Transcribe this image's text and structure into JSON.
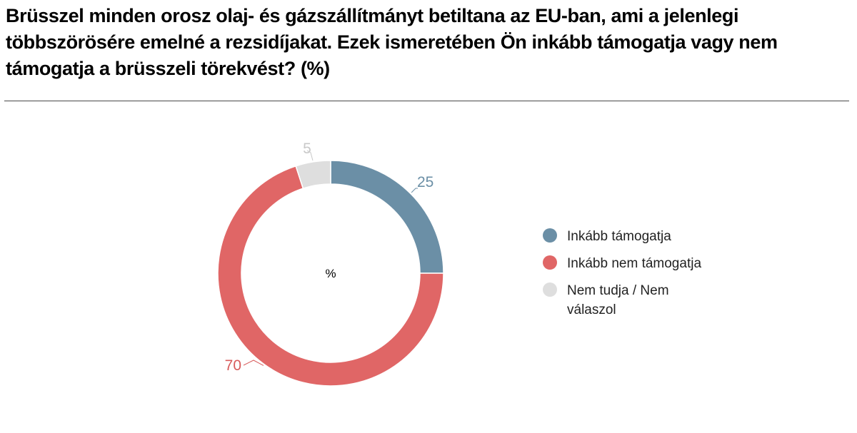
{
  "title": "Brüsszel minden orosz olaj- és gázszállítmányt betiltana az EU-ban, ami a jelenlegi többszörösére emelné a rezsidíjakat. Ezek ismeretében Ön inkább támogatja vagy nem támogatja a brüsszeli törekvést? (%)",
  "chart_data": {
    "type": "pie",
    "subtype": "donut",
    "center_label": "%",
    "legend_position": "right",
    "slices": [
      {
        "label": "Inkább támogatja",
        "value": 25,
        "color": "#6b8fa6"
      },
      {
        "label": "Inkább nem támogatja",
        "value": 70,
        "color": "#e06666"
      },
      {
        "label": "Nem tudja / Nem válaszol",
        "value": 5,
        "color": "#dedede"
      }
    ]
  },
  "data_label_colors": {
    "Inkább támogatja": "#6b8fa6",
    "Inkább nem támogatja": "#d85c5c",
    "Nem tudja / Nem válaszol": "#c9c9c9"
  }
}
